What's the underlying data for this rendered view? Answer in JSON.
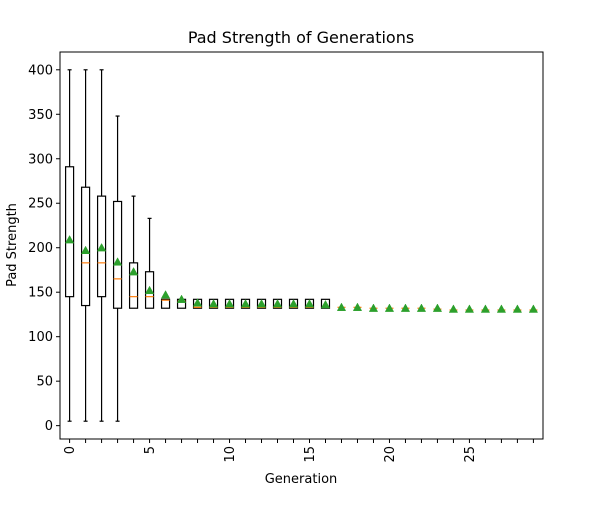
{
  "chart_data": {
    "type": "box",
    "title": "Pad Strength of Generations",
    "xlabel": "Generation",
    "ylabel": "Pad Strength",
    "xlim": [
      -0.6,
      29.6
    ],
    "ylim": [
      -15,
      420
    ],
    "xticks": [
      0,
      5,
      10,
      15,
      20,
      25
    ],
    "yticks": [
      0,
      50,
      100,
      150,
      200,
      250,
      300,
      350,
      400
    ],
    "grid": false,
    "colors": {
      "box": "#000000",
      "median": "#ff7f0e",
      "mean": "#2ca02c"
    },
    "generations": [
      0,
      1,
      2,
      3,
      4,
      5,
      6,
      7,
      8,
      9,
      10,
      11,
      12,
      13,
      14,
      15,
      16,
      17,
      18,
      19,
      20,
      21,
      22,
      23,
      24,
      25,
      26,
      27,
      28,
      29
    ],
    "q1": [
      145,
      135,
      145,
      132,
      132,
      132,
      132,
      132,
      132,
      132,
      132,
      132,
      132,
      132,
      132,
      132,
      132,
      132,
      132,
      131,
      131,
      131,
      131,
      131,
      130,
      130,
      130,
      130,
      130,
      130
    ],
    "median": [
      null,
      183,
      183,
      165,
      145,
      145,
      141,
      140,
      133,
      133,
      133,
      133,
      133,
      133,
      133,
      133,
      133,
      133,
      133,
      132,
      132,
      132,
      132,
      131,
      130,
      130,
      130,
      130,
      130,
      130
    ],
    "q3": [
      291,
      268,
      258,
      252,
      183,
      173,
      142,
      142,
      142,
      142,
      142,
      142,
      142,
      142,
      142,
      142,
      142,
      133,
      133,
      132,
      132,
      132,
      132,
      131,
      131,
      131,
      131,
      131,
      131,
      131
    ],
    "whisker_low": [
      5,
      5,
      5,
      5,
      132,
      132,
      132,
      132,
      132,
      132,
      132,
      132,
      132,
      132,
      132,
      132,
      132,
      132,
      132,
      131,
      131,
      131,
      131,
      131,
      130,
      130,
      130,
      130,
      130,
      130
    ],
    "whisker_high": [
      400,
      400,
      400,
      348,
      258,
      233,
      142,
      142,
      142,
      142,
      142,
      142,
      142,
      142,
      142,
      142,
      142,
      133,
      133,
      132,
      132,
      132,
      132,
      131,
      131,
      131,
      131,
      131,
      131,
      131
    ],
    "mean": [
      209,
      197,
      200,
      184,
      173,
      152,
      147,
      142,
      138,
      137,
      137,
      137,
      137,
      137,
      137,
      137,
      136,
      133,
      133,
      132,
      132,
      132,
      132,
      132,
      131,
      131,
      131,
      131,
      131,
      131
    ]
  }
}
